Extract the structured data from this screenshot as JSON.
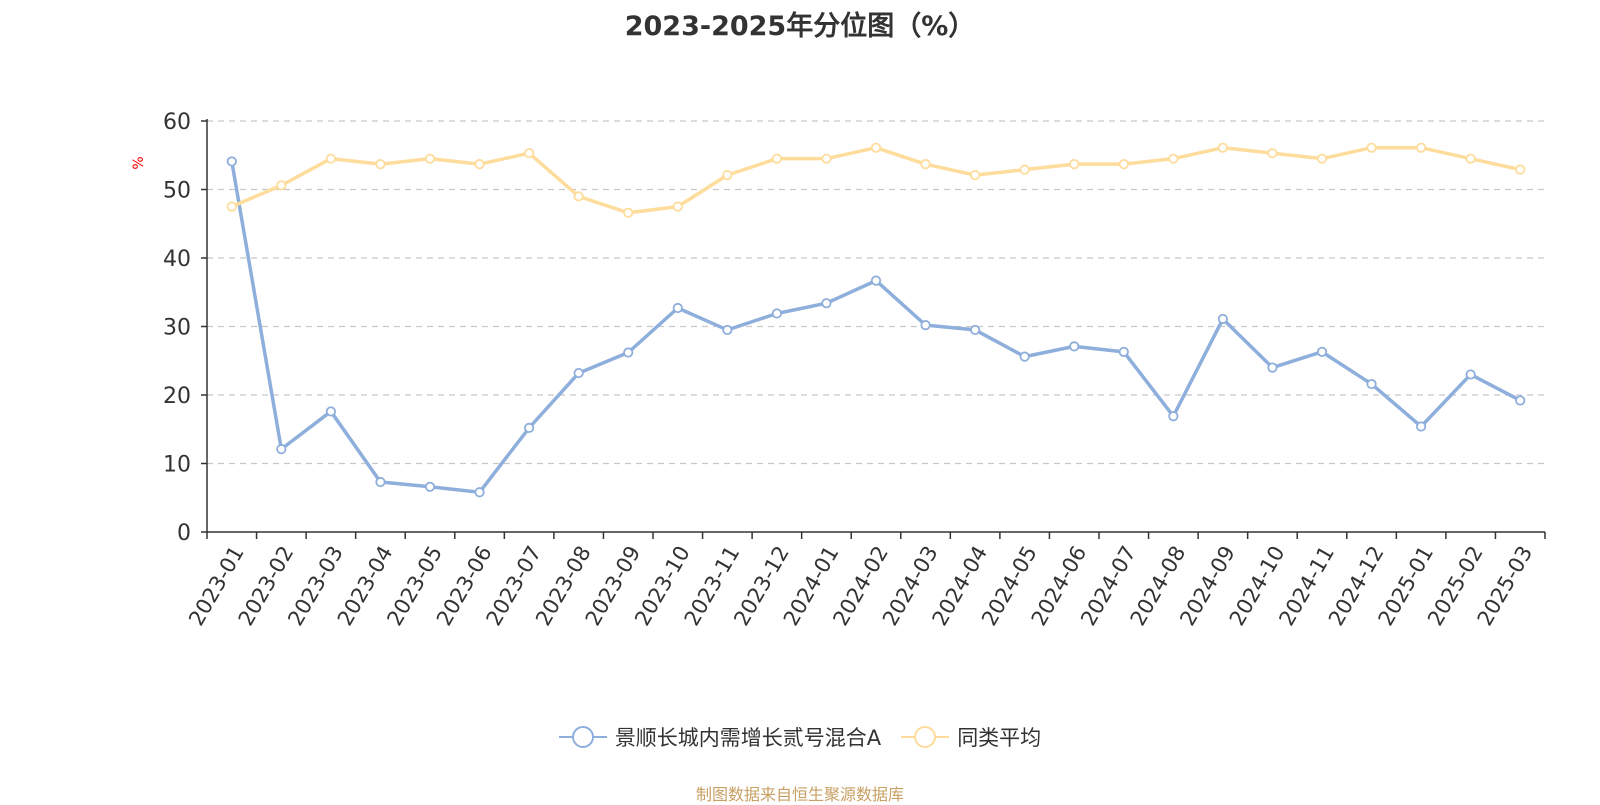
{
  "chart_data": {
    "type": "line",
    "title": "2023-2025年分位图（%）",
    "ylabel": "%",
    "xlabel": "",
    "ylim": [
      0,
      60
    ],
    "yticks": [
      0,
      10,
      20,
      30,
      40,
      50,
      60
    ],
    "grid": true,
    "legend_position": "bottom-center",
    "categories": [
      "2023-01",
      "2023-02",
      "2023-03",
      "2023-04",
      "2023-05",
      "2023-06",
      "2023-07",
      "2023-08",
      "2023-09",
      "2023-10",
      "2023-11",
      "2023-12",
      "2024-01",
      "2024-02",
      "2024-03",
      "2024-04",
      "2024-05",
      "2024-06",
      "2024-07",
      "2024-08",
      "2024-09",
      "2024-10",
      "2024-11",
      "2024-12",
      "2025-01",
      "2025-02",
      "2025-03"
    ],
    "series": [
      {
        "name": "景顺长城内需增长贰号混合A",
        "color": "#8eaedb",
        "values": [
          54.1,
          12.1,
          17.6,
          7.3,
          6.6,
          5.8,
          15.2,
          23.2,
          26.2,
          32.7,
          29.5,
          31.9,
          33.4,
          36.7,
          30.2,
          29.5,
          25.6,
          27.1,
          26.3,
          16.9,
          31.1,
          24.0,
          26.3,
          21.6,
          15.4,
          23.0,
          19.2
        ]
      },
      {
        "name": "同类平均",
        "color": "#fddc9c",
        "values": [
          47.5,
          50.6,
          54.5,
          53.7,
          54.5,
          53.7,
          55.3,
          49.0,
          46.6,
          47.5,
          52.1,
          54.5,
          54.5,
          56.1,
          53.7,
          52.1,
          52.9,
          53.7,
          53.7,
          54.5,
          56.1,
          55.3,
          54.5,
          56.1,
          56.1,
          54.5,
          52.9
        ]
      }
    ]
  },
  "source_note": "制图数据来自恒生聚源数据库",
  "colors": {
    "axis": "#333333",
    "grid": "#c8c8c8",
    "ylabel": "#ff0000",
    "source_note": "#c8a064"
  }
}
